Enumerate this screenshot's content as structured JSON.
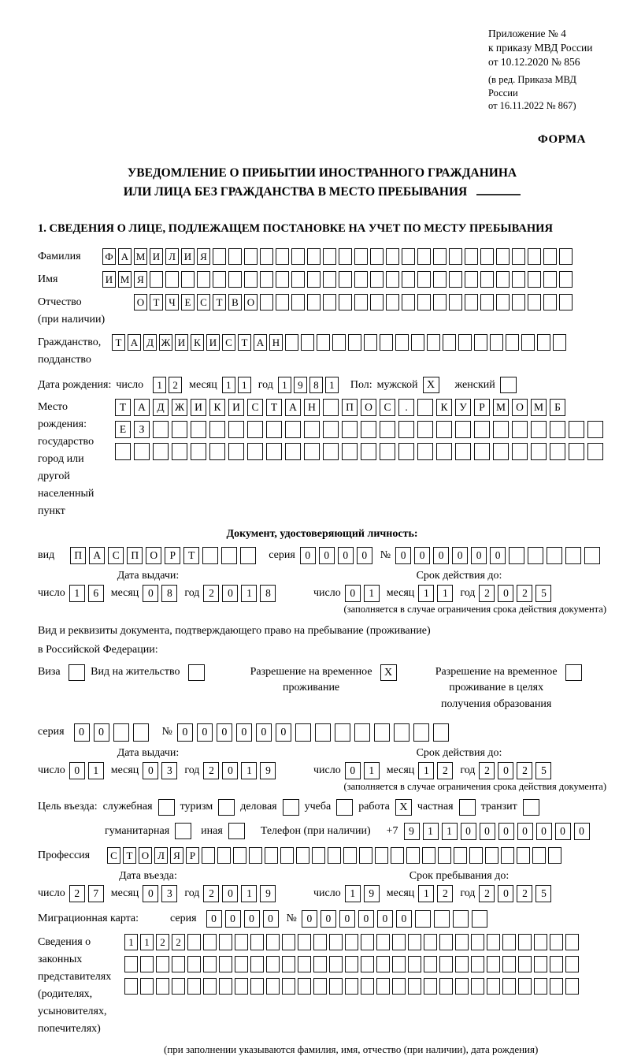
{
  "header": {
    "annex_lines": [
      "Приложение № 4",
      "к приказу МВД России",
      "от 10.12.2020 № 856"
    ],
    "edition_lines": [
      "(в ред. Приказа МВД России",
      "от 16.11.2022 № 867)"
    ],
    "form_label": "ФОРМА"
  },
  "title": {
    "line1": "УВЕДОМЛЕНИЕ О ПРИБЫТИИ ИНОСТРАННОГО ГРАЖДАНИНА",
    "line2": "ИЛИ ЛИЦА БЕЗ ГРАЖДАНСТВА В МЕСТО ПРЕБЫВАНИЯ"
  },
  "section1": {
    "heading": "1. СВЕДЕНИЯ О ЛИЦЕ, ПОДЛЕЖАЩЕМ ПОСТАНОВКЕ НА УЧЕТ ПО МЕСТУ ПРЕБЫВАНИЯ"
  },
  "labels": {
    "day": "число",
    "month": "месяц",
    "year": "год",
    "series": "серия",
    "number": "№",
    "doc_type": "вид",
    "sex": "Пол:",
    "male": "мужской",
    "female": "женский",
    "phone": "Телефон (при наличии)",
    "phone_prefix": "+7",
    "validity_note": "(заполняется в случае ограничения срока действия документа)"
  },
  "fields": {
    "surname": {
      "label": "Фамилия",
      "value": "ФАМИЛИЯ",
      "total": 30
    },
    "given_name": {
      "label": "Имя",
      "value": "ИМЯ",
      "total": 30
    },
    "patronymic": {
      "label": "Отчество",
      "sublabel": "(при наличии)",
      "value": "ОТЧЕСТВО",
      "total": 28
    },
    "citizenship": {
      "label": "Гражданство,",
      "sublabel": "подданство",
      "value": "ТАДЖИКИСТАН",
      "total": 29
    },
    "birth_date": {
      "label": "Дата рождения:",
      "day": {
        "value": "12",
        "total": 2
      },
      "month": {
        "value": "11",
        "total": 2
      },
      "year": {
        "value": "1981",
        "total": 4
      },
      "male_checked": "X",
      "female_checked": ""
    },
    "birth_place": {
      "label_lines": [
        "Место рождения:",
        "государство",
        "город или другой",
        "населенный пункт"
      ],
      "row1": {
        "value": "ТАДЖИКИСТАН ПОС. КУРМОМБ",
        "total": 24
      },
      "row2": {
        "value": "ЕЗ",
        "total": 26
      },
      "row3": {
        "value": "",
        "total": 26
      }
    }
  },
  "identity_doc": {
    "heading": "Документ, удостоверяющий личность:",
    "type": {
      "value": "ПАСПОРТ",
      "total": 10
    },
    "series": {
      "value": "0000",
      "total": 4
    },
    "number": {
      "value": "000000",
      "total": 11
    },
    "issue": {
      "heading": "Дата выдачи:",
      "day": {
        "value": "16",
        "total": 2
      },
      "month": {
        "value": "08",
        "total": 2
      },
      "year": {
        "value": "2018",
        "total": 4
      }
    },
    "valid": {
      "heading": "Срок действия до:",
      "day": {
        "value": "01",
        "total": 2
      },
      "month": {
        "value": "11",
        "total": 2
      },
      "year": {
        "value": "2025",
        "total": 4
      }
    }
  },
  "residence_doc": {
    "intro_line1": "Вид и реквизиты документа, подтверждающего право на пребывание (проживание)",
    "intro_line2": "в Российской Федерации:",
    "visa": {
      "label": "Виза",
      "checked": ""
    },
    "residence_permit": {
      "label": "Вид на жительство",
      "checked": ""
    },
    "temp_permit": {
      "line1": "Разрешение на временное",
      "line2": "проживание",
      "checked": "X"
    },
    "edu_permit": {
      "line1": "Разрешение на временное",
      "line2": "проживание в целях",
      "line3": "получения образования",
      "checked": ""
    },
    "series": {
      "value": "00",
      "total": 4
    },
    "number": {
      "value": "000000",
      "total": 14
    },
    "issue": {
      "heading": "Дата выдачи:",
      "day": {
        "value": "01",
        "total": 2
      },
      "month": {
        "value": "03",
        "total": 2
      },
      "year": {
        "value": "2019",
        "total": 4
      }
    },
    "valid": {
      "heading": "Срок действия до:",
      "day": {
        "value": "01",
        "total": 2
      },
      "month": {
        "value": "12",
        "total": 2
      },
      "year": {
        "value": "2025",
        "total": 4
      }
    }
  },
  "visit_purpose": {
    "label": "Цель въезда:",
    "official": {
      "label": "служебная",
      "checked": ""
    },
    "tourism": {
      "label": "туризм",
      "checked": ""
    },
    "business": {
      "label": "деловая",
      "checked": ""
    },
    "study": {
      "label": "учеба",
      "checked": ""
    },
    "work": {
      "label": "работа",
      "checked": "X"
    },
    "private": {
      "label": "частная",
      "checked": ""
    },
    "transit": {
      "label": "транзит",
      "checked": ""
    },
    "humanitarian": {
      "label": "гуманитарная",
      "checked": ""
    },
    "other": {
      "label": "иная",
      "checked": ""
    }
  },
  "phone": {
    "value": "9110000000",
    "total": 10
  },
  "profession": {
    "label": "Профессия",
    "value": "СТОЛЯР",
    "total": 29
  },
  "entry": {
    "arrival": {
      "heading": "Дата въезда:",
      "day": {
        "value": "27",
        "total": 2
      },
      "month": {
        "value": "03",
        "total": 2
      },
      "year": {
        "value": "2019",
        "total": 4
      }
    },
    "stay_until": {
      "heading": "Срок пребывания до:",
      "day": {
        "value": "19",
        "total": 2
      },
      "month": {
        "value": "12",
        "total": 2
      },
      "year": {
        "value": "2025",
        "total": 4
      }
    }
  },
  "migration_card": {
    "label": "Миграционная карта:",
    "series": {
      "value": "0000",
      "total": 4
    },
    "number": {
      "value": "000000",
      "total": 10
    }
  },
  "representatives": {
    "label_lines": [
      "Сведения о",
      "законных",
      "представителях",
      "(родителях,",
      "усыновителях,",
      "попечителях)"
    ],
    "row1": {
      "value": "1122",
      "total": 29
    },
    "row2": {
      "value": "",
      "total": 29
    },
    "row3": {
      "value": "",
      "total": 29
    },
    "note": "(при заполнении указываются фамилия, имя, отчество (при наличии), дата рождения)"
  }
}
